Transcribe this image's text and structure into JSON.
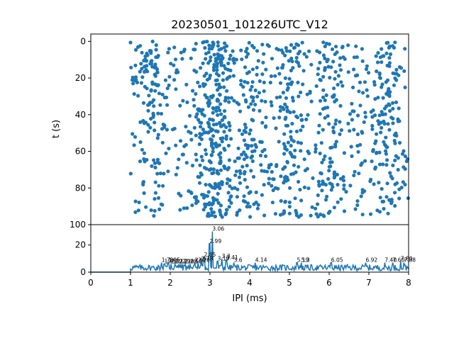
{
  "chart_data": [
    {
      "type": "scatter",
      "title": "20230501_101226UTC_V12",
      "xlabel": "",
      "ylabel": "t (s)",
      "xlim": [
        0,
        8
      ],
      "ylim": [
        100,
        -4
      ],
      "y_inverted": true,
      "y_ticks": [
        0,
        20,
        40,
        60,
        80,
        100
      ],
      "x_ticks_labels_visible": false,
      "color": "#1f77b4",
      "x_range_of_points": [
        1.0,
        8.0
      ],
      "y_range_of_points": [
        0,
        96
      ],
      "point_count_approx": 1200,
      "density_note_x": [
        1.5,
        3.0,
        3.3,
        4.0,
        5.0,
        6.0,
        7.5
      ],
      "density_note_weight": [
        1.2,
        2.5,
        1.8,
        1.1,
        1.0,
        1.1,
        1.3
      ]
    },
    {
      "type": "line",
      "xlabel": "IPI (ms)",
      "ylabel": "",
      "xlim": [
        0,
        8
      ],
      "ylim": [
        0,
        35
      ],
      "x_ticks": [
        0,
        1,
        2,
        3,
        4,
        5,
        6,
        7,
        8
      ],
      "y_ticks": [
        0,
        20
      ],
      "color": "#1f77b4",
      "peaks": [
        {
          "x": 1.78,
          "y": 7,
          "label": "1.78"
        },
        {
          "x": 1.85,
          "y": 6,
          "label": "1.85"
        },
        {
          "x": 1.95,
          "y": 7,
          "label": "1.95"
        },
        {
          "x": 2.02,
          "y": 6,
          "label": "2.02"
        },
        {
          "x": 2.12,
          "y": 6,
          "label": "2.12"
        },
        {
          "x": 2.22,
          "y": 6,
          "label": "2.22"
        },
        {
          "x": 2.3,
          "y": 6,
          "label": "2.30"
        },
        {
          "x": 2.38,
          "y": 6,
          "label": "2.38"
        },
        {
          "x": 2.5,
          "y": 6,
          "label": "2.50"
        },
        {
          "x": 2.62,
          "y": 7,
          "label": "2.62"
        },
        {
          "x": 2.7,
          "y": 7,
          "label": "2.70"
        },
        {
          "x": 2.78,
          "y": 8,
          "label": "2.78"
        },
        {
          "x": 2.85,
          "y": 11,
          "label": "2.85"
        },
        {
          "x": 2.99,
          "y": 21,
          "label": "2.99"
        },
        {
          "x": 3.06,
          "y": 30,
          "label": "3.06"
        },
        {
          "x": 3.19,
          "y": 8,
          "label": "3.19"
        },
        {
          "x": 3.3,
          "y": 10,
          "label": "3.3"
        },
        {
          "x": 3.41,
          "y": 9,
          "label": "3.41"
        },
        {
          "x": 3.6,
          "y": 7,
          "label": "3.6"
        },
        {
          "x": 4.14,
          "y": 7,
          "label": "4.14"
        },
        {
          "x": 5.19,
          "y": 7,
          "label": "5.19"
        },
        {
          "x": 5.3,
          "y": 7,
          "label": "5.3"
        },
        {
          "x": 6.05,
          "y": 7,
          "label": "6.05"
        },
        {
          "x": 6.92,
          "y": 7,
          "label": "6.92"
        },
        {
          "x": 7.4,
          "y": 7,
          "label": "7.40"
        },
        {
          "x": 7.6,
          "y": 7,
          "label": "7.60"
        },
        {
          "x": 7.8,
          "y": 8,
          "label": "7.80"
        },
        {
          "x": 7.88,
          "y": 7,
          "label": "7.88"
        }
      ],
      "baseline_from_x": 1.0,
      "baseline_level": 3
    }
  ]
}
